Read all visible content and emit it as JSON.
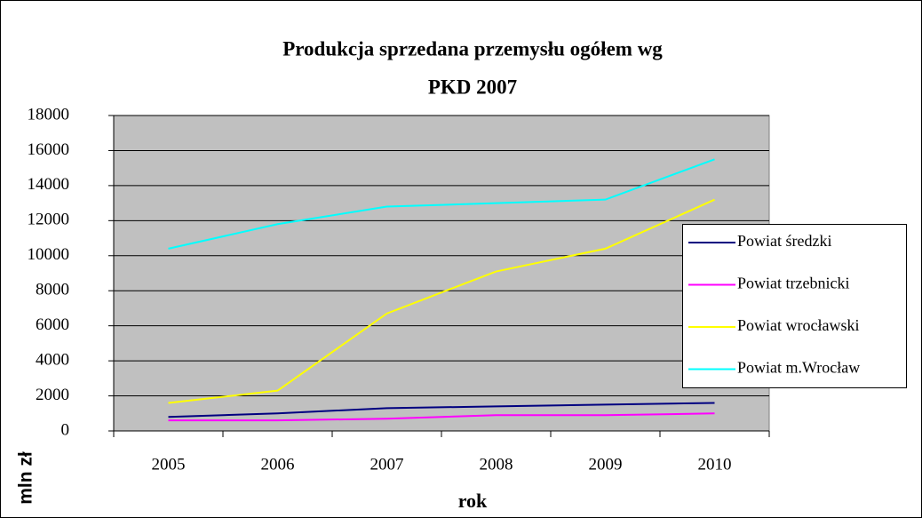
{
  "chart_data": {
    "type": "line",
    "title": [
      "Produkcja sprzedana przemysłu ogółem wg",
      "PKD 2007"
    ],
    "y_label": "mln zł",
    "x_label": "rok",
    "categories": [
      "2005",
      "2006",
      "2007",
      "2008",
      "2009",
      "2010"
    ],
    "series": [
      {
        "name": "Powiat średzki",
        "color": "#000080",
        "values": [
          800,
          1000,
          1300,
          1400,
          1500,
          1600
        ]
      },
      {
        "name": "Powiat trzebnicki",
        "color": "#ff00ff",
        "values": [
          600,
          600,
          700,
          900,
          900,
          1000
        ]
      },
      {
        "name": "Powiat wrocławski",
        "color": "#ffff00",
        "values": [
          1600,
          2300,
          6700,
          9100,
          10400,
          13200
        ]
      },
      {
        "name": "Powiat m.Wrocław",
        "color": "#00ffff",
        "values": [
          10400,
          11800,
          12800,
          13000,
          13200,
          15500
        ]
      }
    ],
    "ylim": [
      0,
      18000
    ],
    "yticks": [
      0,
      2000,
      4000,
      6000,
      8000,
      10000,
      12000,
      14000,
      16000,
      18000
    ],
    "grid": true,
    "legend": "right"
  }
}
